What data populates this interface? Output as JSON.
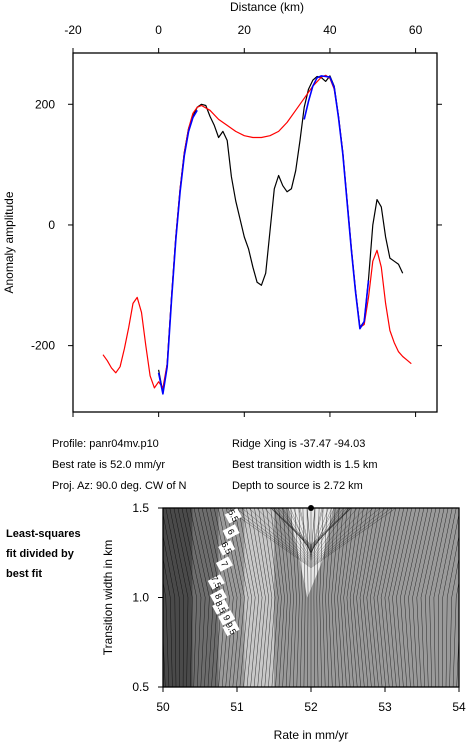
{
  "chart_data": [
    {
      "type": "line",
      "title": "",
      "xlabel": "Distance (km)",
      "ylabel": "Anomaly amplitude",
      "xlim": [
        -20,
        65
      ],
      "ylim": [
        -310,
        285
      ],
      "x_ticks": [
        -20,
        0,
        20,
        40,
        60
      ],
      "y_ticks": [
        200,
        0,
        -200
      ],
      "x_tick_labels": [
        "-20",
        "0",
        "20",
        "40",
        "60"
      ],
      "y_tick_labels": [
        "200",
        "0",
        "-200"
      ],
      "grid": false,
      "series": [
        {
          "color": "#000000",
          "x": [
            0,
            1,
            2,
            3,
            4,
            5,
            6,
            7,
            8,
            9,
            10,
            11,
            12,
            13,
            14,
            15,
            16,
            17,
            18,
            19,
            20,
            21,
            22,
            23,
            24,
            25,
            26,
            27,
            28,
            29,
            30,
            31,
            32,
            33,
            34,
            35,
            36,
            37,
            38,
            39,
            40,
            41,
            42,
            43,
            44,
            45,
            46,
            47,
            48,
            49,
            50,
            51,
            52,
            53,
            54,
            55,
            56,
            57
          ],
          "y": [
            -240,
            -278,
            -230,
            -120,
            -20,
            60,
            120,
            160,
            180,
            195,
            200,
            198,
            180,
            165,
            145,
            155,
            140,
            80,
            40,
            10,
            -20,
            -40,
            -70,
            -95,
            -100,
            -80,
            -10,
            60,
            82,
            65,
            55,
            60,
            90,
            140,
            195,
            225,
            240,
            246,
            244,
            238,
            247,
            230,
            180,
            120,
            40,
            -40,
            -110,
            -170,
            -160,
            -90,
            0,
            42,
            30,
            -20,
            -55,
            -60,
            -65,
            -80
          ]
        },
        {
          "color": "#ff0000",
          "x": [
            -13,
            -12,
            -11,
            -10,
            -9,
            -8,
            -7,
            -6,
            -5,
            -4,
            -3,
            -2,
            -1,
            0,
            1,
            2,
            3,
            4,
            5,
            6,
            7,
            8,
            9,
            10,
            12,
            14,
            16,
            18,
            20,
            22,
            24,
            26,
            28,
            30,
            32,
            34,
            36,
            38,
            39,
            40,
            41,
            42,
            43,
            44,
            45,
            46,
            47,
            48,
            49,
            50,
            51,
            52,
            53,
            54,
            55,
            56,
            57,
            58,
            59
          ],
          "y": [
            -215,
            -225,
            -237,
            -245,
            -235,
            -205,
            -170,
            -130,
            -120,
            -145,
            -200,
            -250,
            -270,
            -260,
            -270,
            -230,
            -120,
            -20,
            60,
            120,
            160,
            185,
            195,
            198,
            190,
            175,
            165,
            155,
            148,
            145,
            145,
            148,
            155,
            170,
            190,
            210,
            230,
            245,
            248,
            243,
            225,
            180,
            120,
            40,
            -40,
            -110,
            -170,
            -165,
            -120,
            -60,
            -42,
            -70,
            -130,
            -175,
            -195,
            -210,
            -218,
            -224,
            -230
          ]
        },
        {
          "color": "#0000ff",
          "x": [
            0,
            1,
            2,
            3,
            4,
            5,
            6,
            7,
            8,
            9,
            34,
            35,
            36,
            37,
            38,
            39,
            40,
            41,
            42,
            43,
            44,
            45,
            46,
            47,
            48,
            49
          ],
          "y": [
            -245,
            -280,
            -235,
            -125,
            -25,
            55,
            115,
            155,
            178,
            190,
            175,
            205,
            230,
            244,
            247,
            246,
            245,
            228,
            178,
            118,
            38,
            -42,
            -112,
            -172,
            -160,
            -92
          ]
        }
      ]
    },
    {
      "type": "heatmap",
      "title": "",
      "xlabel": "Rate in mm/yr",
      "ylabel": "Transition width in km",
      "xlim": [
        50,
        54
      ],
      "ylim": [
        0.5,
        1.5
      ],
      "x_ticks": [
        50,
        51,
        52,
        53,
        54
      ],
      "y_ticks": [
        0.5,
        1.0,
        1.5
      ],
      "x_tick_labels": [
        "50",
        "51",
        "52",
        "53",
        "54"
      ],
      "y_tick_labels": [
        "0.5",
        "1.0",
        "1.5"
      ],
      "contour_labels": [
        "5.5",
        "6",
        "6.5",
        "7",
        "7.5",
        "8",
        "8.5",
        "9",
        "9.5"
      ],
      "contour_label_points": [
        [
          50.95,
          1.44
        ],
        [
          50.92,
          1.35
        ],
        [
          50.86,
          1.26
        ],
        [
          50.83,
          1.17
        ],
        [
          50.72,
          1.07
        ],
        [
          50.75,
          0.99
        ],
        [
          50.78,
          0.93
        ],
        [
          50.86,
          0.87
        ],
        [
          50.92,
          0.81
        ]
      ],
      "best_fit_marker": [
        52.0,
        1.5
      ],
      "grid": false
    }
  ],
  "info": {
    "profile": "Profile: panr04mv.p10",
    "best_rate": "Best rate is 52.0 mm/yr",
    "proj_az": "Proj. Az: 90.0 deg. CW of N",
    "ridge_xing": "Ridge Xing is -37.47 -94.03",
    "best_width": "Best transition width is 1.5 km",
    "depth": "Depth to source is   2.72 km"
  },
  "side_note": "Least-squares fit divided by best fit"
}
